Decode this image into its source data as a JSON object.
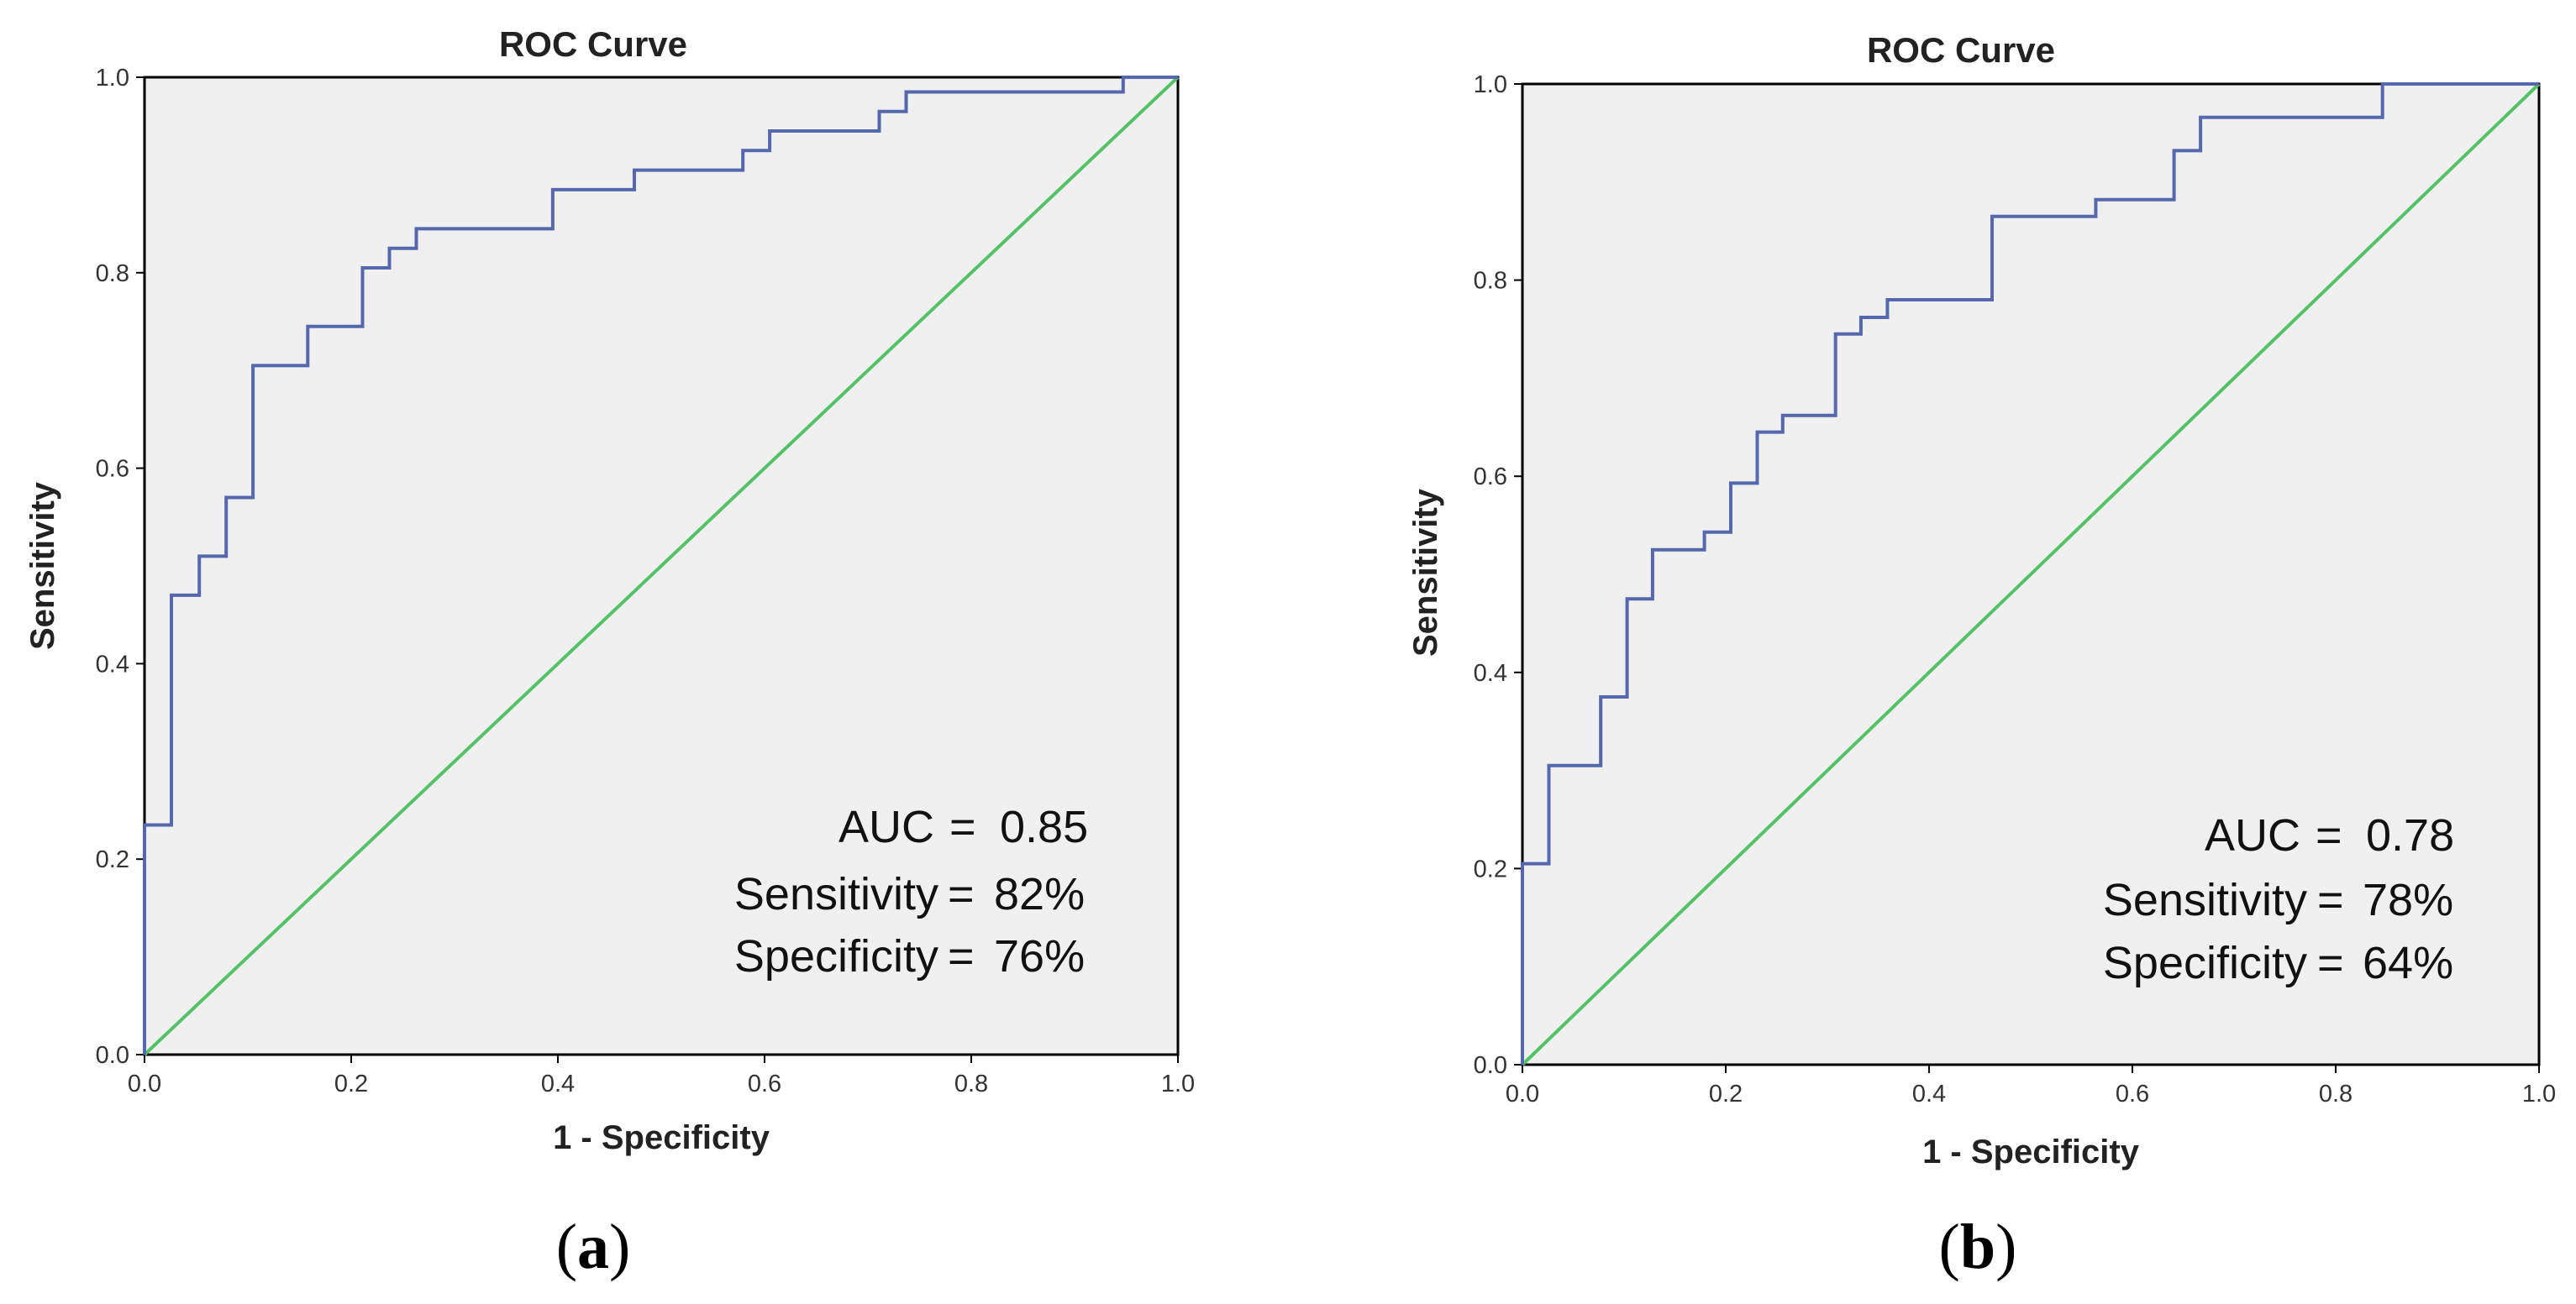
{
  "chart_data": [
    {
      "type": "line",
      "title": "ROC Curve",
      "xlabel": "1 - Specificity",
      "ylabel": "Sensitivity",
      "xlim": [
        0,
        1
      ],
      "ylim": [
        0,
        1
      ],
      "xticks": [
        "0.0",
        "0.2",
        "0.4",
        "0.6",
        "0.8",
        "1.0"
      ],
      "yticks": [
        "0.0",
        "0.2",
        "0.4",
        "0.6",
        "0.8",
        "1.0"
      ],
      "grid": false,
      "caption": {
        "open": "(",
        "letter": "a",
        "close": ")"
      },
      "annotations": [
        {
          "label": "AUC",
          "sep": "=",
          "value": "0.85"
        },
        {
          "label": "Sensitivity",
          "sep": "=",
          "value": "82%"
        },
        {
          "label": "Specificity",
          "sep": "=",
          "value": "76%"
        }
      ],
      "series": [
        {
          "name": "ROC",
          "color": "#5567ad",
          "step": true,
          "x": [
            0.0,
            0.0,
            0.026,
            0.026,
            0.053,
            0.053,
            0.079,
            0.079,
            0.105,
            0.105,
            0.158,
            0.158,
            0.211,
            0.211,
            0.237,
            0.237,
            0.263,
            0.263,
            0.395,
            0.395,
            0.474,
            0.474,
            0.579,
            0.579,
            0.605,
            0.605,
            0.711,
            0.711,
            0.737,
            0.737,
            0.947,
            0.947,
            1.0
          ],
          "y": [
            0.0,
            0.235,
            0.235,
            0.47,
            0.47,
            0.51,
            0.51,
            0.57,
            0.57,
            0.705,
            0.705,
            0.745,
            0.745,
            0.805,
            0.805,
            0.825,
            0.825,
            0.845,
            0.845,
            0.885,
            0.885,
            0.905,
            0.905,
            0.925,
            0.925,
            0.945,
            0.945,
            0.965,
            0.965,
            0.985,
            0.985,
            1.0,
            1.0
          ]
        },
        {
          "name": "Reference line",
          "color": "#54c266",
          "step": false,
          "x": [
            0.0,
            1.0
          ],
          "y": [
            0.0,
            1.0
          ]
        }
      ]
    },
    {
      "type": "line",
      "title": "ROC Curve",
      "xlabel": "1 - Specificity",
      "ylabel": "Sensitivity",
      "xlim": [
        0,
        1
      ],
      "ylim": [
        0,
        1
      ],
      "xticks": [
        "0.0",
        "0.2",
        "0.4",
        "0.6",
        "0.8",
        "1.0"
      ],
      "yticks": [
        "0.0",
        "0.2",
        "0.4",
        "0.6",
        "0.8",
        "1.0"
      ],
      "grid": false,
      "caption": {
        "open": "(",
        "letter": "b",
        "close": ")"
      },
      "annotations": [
        {
          "label": "AUC",
          "sep": "=",
          "value": "0.78"
        },
        {
          "label": "Sensitivity",
          "sep": "=",
          "value": "78%"
        },
        {
          "label": "Specificity",
          "sep": "=",
          "value": "64%"
        }
      ],
      "series": [
        {
          "name": "ROC",
          "color": "#5567ad",
          "step": true,
          "x": [
            0.0,
            0.0,
            0.026,
            0.026,
            0.077,
            0.077,
            0.103,
            0.103,
            0.128,
            0.128,
            0.179,
            0.179,
            0.205,
            0.205,
            0.231,
            0.231,
            0.256,
            0.256,
            0.308,
            0.308,
            0.333,
            0.333,
            0.359,
            0.359,
            0.462,
            0.462,
            0.564,
            0.564,
            0.641,
            0.641,
            0.667,
            0.667,
            0.846,
            0.846,
            1.0
          ],
          "y": [
            0.0,
            0.205,
            0.205,
            0.305,
            0.305,
            0.375,
            0.375,
            0.475,
            0.475,
            0.525,
            0.525,
            0.543,
            0.543,
            0.593,
            0.593,
            0.645,
            0.645,
            0.662,
            0.662,
            0.745,
            0.745,
            0.762,
            0.762,
            0.78,
            0.78,
            0.865,
            0.865,
            0.882,
            0.882,
            0.932,
            0.932,
            0.966,
            0.966,
            1.0,
            1.0
          ]
        },
        {
          "name": "Reference line",
          "color": "#54c266",
          "step": false,
          "x": [
            0.0,
            1.0
          ],
          "y": [
            0.0,
            1.0
          ]
        }
      ]
    }
  ]
}
